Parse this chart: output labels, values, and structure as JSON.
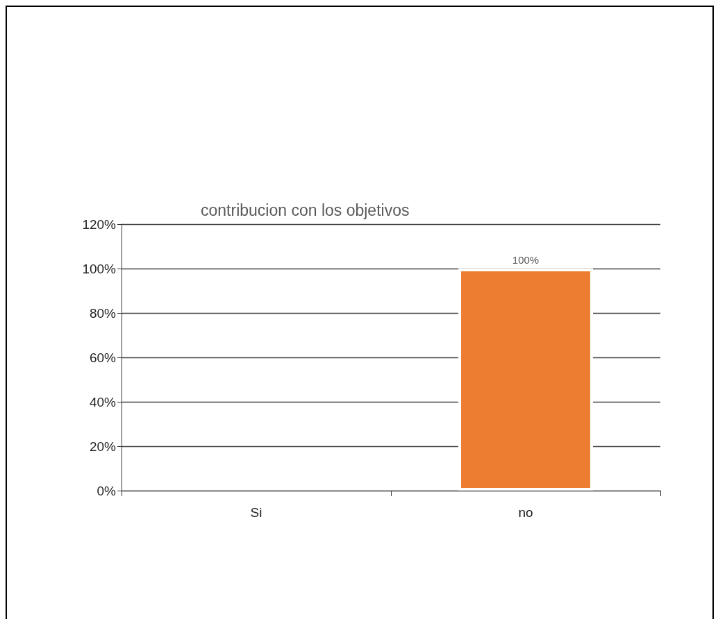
{
  "chart_data": {
    "type": "bar",
    "title": "contribucion con los objetivos",
    "categories": [
      "Si",
      "no"
    ],
    "values": [
      0,
      100
    ],
    "color": "#ed7d31",
    "value_labels": [
      null,
      "100%"
    ],
    "ylim": [
      0,
      120
    ],
    "yticks": [
      {
        "value": 0,
        "label": "0%"
      },
      {
        "value": 20,
        "label": "20%"
      },
      {
        "value": 40,
        "label": "40%"
      },
      {
        "value": 60,
        "label": "60%"
      },
      {
        "value": 80,
        "label": "80%"
      },
      {
        "value": 100,
        "label": "100%"
      },
      {
        "value": 120,
        "label": "120%"
      }
    ],
    "grid": "y"
  }
}
